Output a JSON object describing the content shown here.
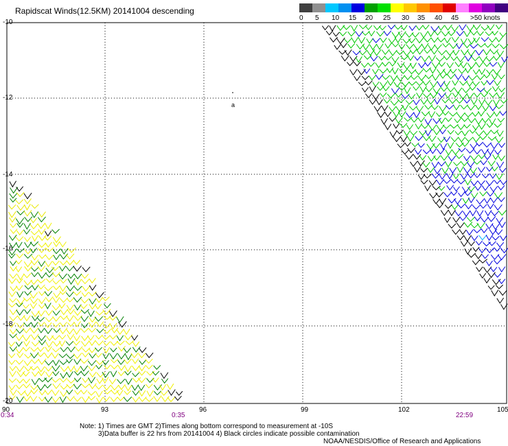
{
  "title": "Rapidscat Winds(12.5KM) 20141004 descending",
  "legend": {
    "colors": [
      "#404040",
      "#909090",
      "#00c8ff",
      "#0090f0",
      "#0000e0",
      "#00a000",
      "#00e000",
      "#ffff00",
      "#ffc800",
      "#ff9000",
      "#ff5000",
      "#e00000",
      "#ff80ff",
      "#e000e0",
      "#9000c0",
      "#400080"
    ],
    "labels": [
      "0",
      "5",
      "10",
      "15",
      "20",
      "25",
      "30",
      "35",
      "40",
      "45",
      ">50 knots"
    ]
  },
  "lat_labels": [
    "-10",
    "-12",
    "-14",
    "-16",
    "-18",
    "-20"
  ],
  "lon_labels": [
    "90",
    "93",
    "96",
    "99",
    "102",
    "105"
  ],
  "times": [
    "0:34",
    "0:35",
    "22:59"
  ],
  "island_marker": "a",
  "notes": [
    "Note: 1) Times are GMT 2)Times along bottom correspond to measurement at -10S",
    "3)Data buffer is 22 hrs from 20141004 4) Black circles indicate possible contamination",
    "NOAA/NESDIS/Office of Research and Applications"
  ],
  "swaths": [
    {
      "name": "east-swath",
      "time": "22:59",
      "speed_range_knots": [
        15,
        35
      ]
    },
    {
      "name": "southwest-swath",
      "time": "0:34",
      "speed_range_knots": [
        15,
        30
      ]
    }
  ]
}
